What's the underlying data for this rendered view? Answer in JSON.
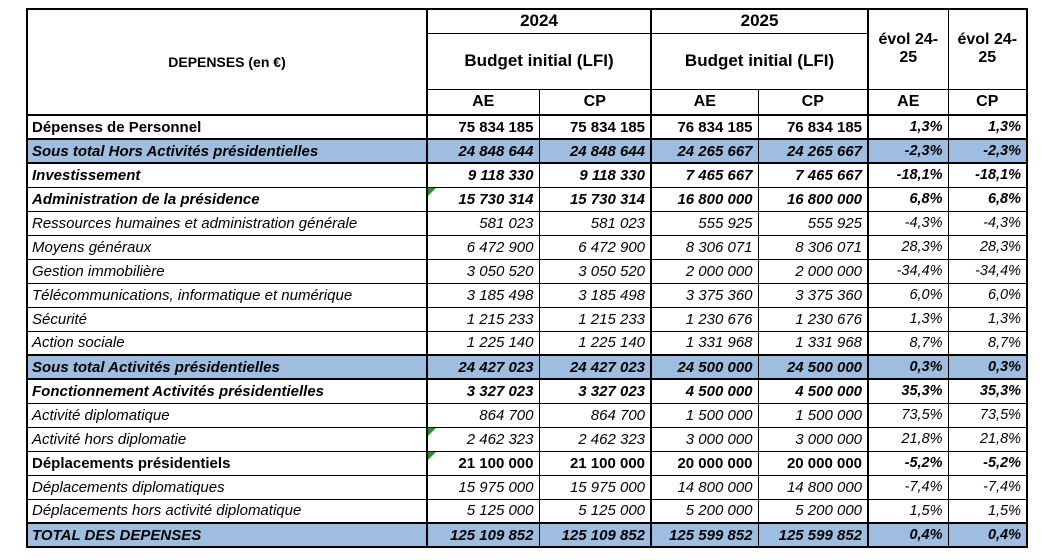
{
  "colors": {
    "subtotal_row_bg": "#9FBDDF",
    "error_marker_green": "#2E8B2E",
    "grid_border": "#000000"
  },
  "header": {
    "title": "DEPENSES (en €)",
    "year_2024": "2024",
    "year_2025": "2025",
    "budget_2024": "Budget initial (LFI)",
    "budget_2025": "Budget initial (LFI)",
    "evol_ae": "évol 24-25",
    "evol_cp": "évol 24-25",
    "sub": [
      "AE",
      "CP",
      "AE",
      "CP",
      "AE",
      "CP"
    ]
  },
  "rows": [
    {
      "label": "Dépenses de Personnel",
      "values": [
        "75 834 185",
        "75 834 185",
        "76 834 185",
        "76 834 185"
      ],
      "evol": [
        "1,3%",
        "1,3%"
      ],
      "bold": true,
      "italic": false,
      "blue": false,
      "marker": false
    },
    {
      "label": "Sous total Hors Activités présidentielles",
      "values": [
        "24 848 644",
        "24 848 644",
        "24 265 667",
        "24 265 667"
      ],
      "evol": [
        "-2,3%",
        "-2,3%"
      ],
      "bold": true,
      "italic": true,
      "blue": true,
      "marker": false
    },
    {
      "label": "Investissement",
      "values": [
        "9 118 330",
        "9 118 330",
        "7 465 667",
        "7 465 667"
      ],
      "evol": [
        "-18,1%",
        "-18,1%"
      ],
      "bold": true,
      "italic": true,
      "blue": false,
      "marker": false
    },
    {
      "label": "Administration de la présidence",
      "values": [
        "15 730 314",
        "15 730 314",
        "16 800 000",
        "16 800 000"
      ],
      "evol": [
        "6,8%",
        "6,8%"
      ],
      "bold": true,
      "italic": true,
      "blue": false,
      "marker": true
    },
    {
      "label": "Ressources humaines et administration générale",
      "values": [
        "581 023",
        "581 023",
        "555 925",
        "555 925"
      ],
      "evol": [
        "-4,3%",
        "-4,3%"
      ],
      "bold": false,
      "italic": true,
      "blue": false,
      "marker": false
    },
    {
      "label": "Moyens généraux",
      "values": [
        "6 472 900",
        "6 472 900",
        "8 306 071",
        "8 306 071"
      ],
      "evol": [
        "28,3%",
        "28,3%"
      ],
      "bold": false,
      "italic": true,
      "blue": false,
      "marker": false
    },
    {
      "label": "Gestion immobilière",
      "values": [
        "3 050 520",
        "3 050 520",
        "2 000 000",
        "2 000 000"
      ],
      "evol": [
        "-34,4%",
        "-34,4%"
      ],
      "bold": false,
      "italic": true,
      "blue": false,
      "marker": false
    },
    {
      "label": "Télécommunications, informatique et numérique",
      "values": [
        "3 185 498",
        "3 185 498",
        "3 375 360",
        "3 375 360"
      ],
      "evol": [
        "6,0%",
        "6,0%"
      ],
      "bold": false,
      "italic": true,
      "blue": false,
      "marker": false
    },
    {
      "label": "Sécurité",
      "values": [
        "1 215 233",
        "1 215 233",
        "1 230 676",
        "1 230 676"
      ],
      "evol": [
        "1,3%",
        "1,3%"
      ],
      "bold": false,
      "italic": true,
      "blue": false,
      "marker": false
    },
    {
      "label": "Action sociale",
      "values": [
        "1 225 140",
        "1 225 140",
        "1 331 968",
        "1 331 968"
      ],
      "evol": [
        "8,7%",
        "8,7%"
      ],
      "bold": false,
      "italic": true,
      "blue": false,
      "marker": false
    },
    {
      "label": "Sous total Activités présidentielles",
      "values": [
        "24 427 023",
        "24 427 023",
        "24 500 000",
        "24 500 000"
      ],
      "evol": [
        "0,3%",
        "0,3%"
      ],
      "bold": true,
      "italic": true,
      "blue": true,
      "marker": false
    },
    {
      "label": "Fonctionnement Activités présidentielles",
      "values": [
        "3 327 023",
        "3 327 023",
        "4 500 000",
        "4 500 000"
      ],
      "evol": [
        "35,3%",
        "35,3%"
      ],
      "bold": true,
      "italic": true,
      "blue": false,
      "marker": false
    },
    {
      "label": "Activité diplomatique",
      "values": [
        "864 700",
        "864 700",
        "1 500 000",
        "1 500 000"
      ],
      "evol": [
        "73,5%",
        "73,5%"
      ],
      "bold": false,
      "italic": true,
      "blue": false,
      "marker": false
    },
    {
      "label": "Activité hors diplomatie",
      "values": [
        "2 462 323",
        "2 462 323",
        "3 000 000",
        "3 000 000"
      ],
      "evol": [
        "21,8%",
        "21,8%"
      ],
      "bold": false,
      "italic": true,
      "blue": false,
      "marker": true
    },
    {
      "label": "Déplacements présidentiels",
      "values": [
        "21 100 000",
        "21 100 000",
        "20 000 000",
        "20 000 000"
      ],
      "evol": [
        "-5,2%",
        "-5,2%"
      ],
      "bold": true,
      "italic": false,
      "blue": false,
      "marker": true
    },
    {
      "label": "Déplacements diplomatiques",
      "values": [
        "15 975 000",
        "15 975 000",
        "14 800 000",
        "14 800 000"
      ],
      "evol": [
        "-7,4%",
        "-7,4%"
      ],
      "bold": false,
      "italic": true,
      "blue": false,
      "marker": false
    },
    {
      "label": "Déplacements hors activité diplomatique",
      "values": [
        "5 125 000",
        "5 125 000",
        "5 200 000",
        "5 200 000"
      ],
      "evol": [
        "1,5%",
        "1,5%"
      ],
      "bold": false,
      "italic": true,
      "blue": false,
      "marker": false
    },
    {
      "label": "TOTAL DES DEPENSES",
      "values": [
        "125 109 852",
        "125 109 852",
        "125 599 852",
        "125 599 852"
      ],
      "evol": [
        "0,4%",
        "0,4%"
      ],
      "bold": true,
      "italic": true,
      "blue": true,
      "marker": false
    }
  ]
}
